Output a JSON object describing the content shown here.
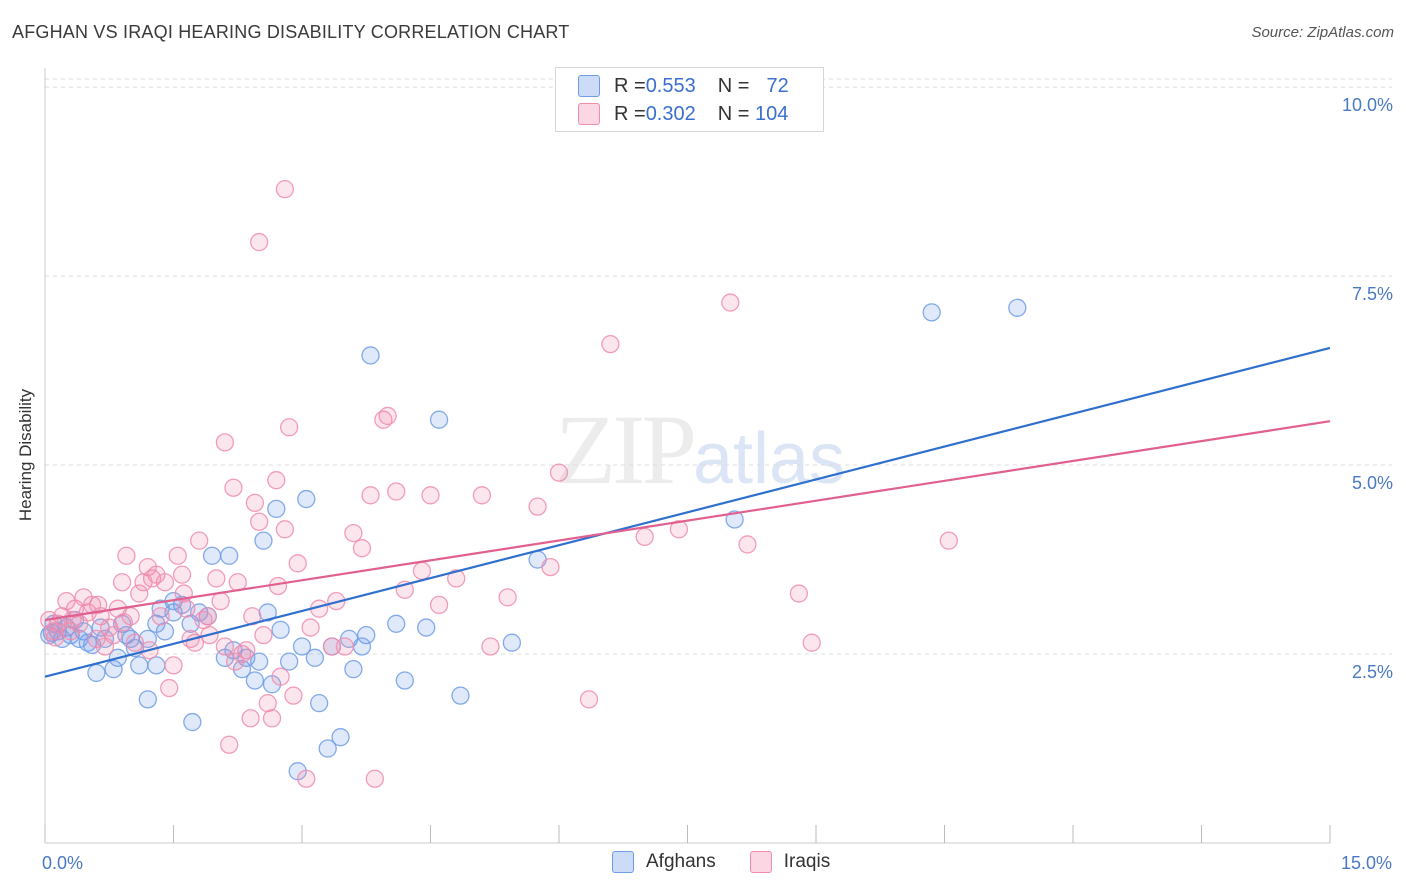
{
  "header": {
    "title": "AFGHAN VS IRAQI HEARING DISABILITY CORRELATION CHART",
    "source": "Source: ZipAtlas.com"
  },
  "watermark": {
    "zip": "ZIP",
    "atlas": "atlas"
  },
  "legend": {
    "rows": [
      {
        "r_label": "R = ",
        "r_value": "0.553",
        "n_label": "N = ",
        "n_value": " 72",
        "color": "#6f9ce6"
      },
      {
        "r_label": "R = ",
        "r_value": "0.302",
        "n_label": "N = ",
        "n_value": "104",
        "color": "#f08cae"
      }
    ]
  },
  "bottom_legend": [
    {
      "label": "Afghans",
      "color": "#6f9ce6"
    },
    {
      "label": "Iraqis",
      "color": "#f08cae"
    }
  ],
  "chart_data": {
    "type": "scatter",
    "title": "AFGHAN VS IRAQI HEARING DISABILITY CORRELATION CHART",
    "xlabel": "",
    "ylabel": "Hearing Disability",
    "xlim": [
      0,
      15
    ],
    "ylim": [
      0,
      10.2
    ],
    "x_tick_labels": [
      {
        "value": 0,
        "label": "0.0%"
      },
      {
        "value": 15,
        "label": "15.0%"
      }
    ],
    "y_tick_labels": [
      {
        "value": 2.5,
        "label": "2.5%"
      },
      {
        "value": 5.0,
        "label": "5.0%"
      },
      {
        "value": 7.5,
        "label": "7.5%"
      },
      {
        "value": 10.0,
        "label": "10.0%"
      }
    ],
    "series": [
      {
        "name": "Afghans",
        "color": "#6f9ce6",
        "line_color": "#2f6fce",
        "trend": {
          "x": [
            0,
            15
          ],
          "y": [
            2.2,
            6.55
          ]
        },
        "points": [
          [
            0.05,
            2.75
          ],
          [
            0.1,
            2.9
          ],
          [
            0.15,
            2.8
          ],
          [
            0.2,
            2.7
          ],
          [
            0.25,
            2.85
          ],
          [
            0.3,
            2.75
          ],
          [
            0.35,
            2.95
          ],
          [
            0.4,
            2.7
          ],
          [
            0.45,
            2.8
          ],
          [
            0.5,
            2.65
          ],
          [
            0.6,
            2.25
          ],
          [
            0.65,
            2.85
          ],
          [
            0.7,
            2.7
          ],
          [
            0.8,
            2.3
          ],
          [
            0.85,
            2.45
          ],
          [
            0.9,
            2.9
          ],
          [
            0.95,
            2.75
          ],
          [
            1.0,
            2.7
          ],
          [
            1.1,
            2.35
          ],
          [
            1.2,
            2.7
          ],
          [
            1.2,
            1.9
          ],
          [
            1.3,
            2.35
          ],
          [
            1.3,
            2.9
          ],
          [
            1.35,
            3.1
          ],
          [
            1.4,
            2.8
          ],
          [
            1.5,
            3.05
          ],
          [
            1.5,
            3.2
          ],
          [
            1.6,
            3.15
          ],
          [
            1.7,
            2.9
          ],
          [
            1.72,
            1.6
          ],
          [
            1.8,
            3.05
          ],
          [
            1.9,
            3.0
          ],
          [
            1.95,
            3.8
          ],
          [
            2.1,
            2.45
          ],
          [
            2.15,
            3.8
          ],
          [
            2.2,
            2.55
          ],
          [
            2.3,
            2.3
          ],
          [
            2.35,
            2.45
          ],
          [
            2.45,
            2.15
          ],
          [
            2.5,
            2.4
          ],
          [
            2.55,
            4.0
          ],
          [
            2.6,
            3.05
          ],
          [
            2.65,
            2.1
          ],
          [
            2.7,
            4.42
          ],
          [
            2.75,
            2.82
          ],
          [
            2.85,
            2.4
          ],
          [
            2.95,
            0.95
          ],
          [
            3.0,
            2.6
          ],
          [
            3.05,
            4.55
          ],
          [
            3.15,
            2.45
          ],
          [
            3.2,
            1.85
          ],
          [
            3.3,
            1.25
          ],
          [
            3.35,
            2.6
          ],
          [
            3.45,
            1.4
          ],
          [
            3.55,
            2.7
          ],
          [
            3.6,
            2.3
          ],
          [
            3.7,
            2.6
          ],
          [
            3.75,
            2.75
          ],
          [
            3.8,
            6.45
          ],
          [
            4.1,
            2.9
          ],
          [
            4.2,
            2.15
          ],
          [
            4.45,
            2.85
          ],
          [
            4.6,
            5.6
          ],
          [
            4.85,
            1.95
          ],
          [
            5.45,
            2.65
          ],
          [
            5.75,
            3.75
          ],
          [
            8.05,
            4.28
          ],
          [
            10.35,
            7.02
          ],
          [
            11.35,
            7.08
          ],
          [
            0.08,
            2.78
          ],
          [
            0.55,
            2.62
          ],
          [
            1.05,
            2.58
          ]
        ]
      },
      {
        "name": "Iraqis",
        "color": "#f08cae",
        "line_color": "#e0608f",
        "trend": {
          "x": [
            0,
            15
          ],
          "y": [
            2.95,
            5.58
          ]
        },
        "points": [
          [
            0.05,
            2.95
          ],
          [
            0.1,
            2.8
          ],
          [
            0.15,
            2.9
          ],
          [
            0.2,
            3.0
          ],
          [
            0.25,
            3.2
          ],
          [
            0.3,
            2.8
          ],
          [
            0.35,
            3.1
          ],
          [
            0.4,
            2.9
          ],
          [
            0.45,
            3.25
          ],
          [
            0.5,
            3.05
          ],
          [
            0.55,
            3.15
          ],
          [
            0.6,
            2.7
          ],
          [
            0.65,
            3.0
          ],
          [
            0.7,
            2.6
          ],
          [
            0.75,
            2.85
          ],
          [
            0.8,
            2.75
          ],
          [
            0.85,
            3.1
          ],
          [
            0.9,
            3.45
          ],
          [
            0.95,
            3.8
          ],
          [
            1.0,
            3.0
          ],
          [
            1.05,
            2.65
          ],
          [
            1.1,
            3.3
          ],
          [
            1.15,
            3.45
          ],
          [
            1.2,
            3.65
          ],
          [
            1.25,
            3.5
          ],
          [
            1.3,
            3.55
          ],
          [
            1.35,
            3.0
          ],
          [
            1.4,
            3.45
          ],
          [
            1.45,
            2.05
          ],
          [
            1.5,
            2.35
          ],
          [
            1.55,
            3.8
          ],
          [
            1.6,
            3.55
          ],
          [
            1.65,
            3.1
          ],
          [
            1.7,
            2.7
          ],
          [
            1.75,
            2.65
          ],
          [
            1.8,
            4.0
          ],
          [
            1.85,
            2.95
          ],
          [
            1.9,
            3.0
          ],
          [
            2.0,
            3.5
          ],
          [
            2.05,
            3.2
          ],
          [
            2.1,
            2.6
          ],
          [
            2.15,
            1.3
          ],
          [
            2.2,
            4.7
          ],
          [
            2.25,
            3.45
          ],
          [
            2.3,
            2.5
          ],
          [
            2.35,
            2.55
          ],
          [
            2.4,
            1.65
          ],
          [
            2.45,
            4.5
          ],
          [
            2.5,
            4.25
          ],
          [
            2.55,
            2.75
          ],
          [
            2.6,
            1.85
          ],
          [
            2.65,
            1.65
          ],
          [
            2.7,
            4.8
          ],
          [
            2.75,
            2.2
          ],
          [
            2.8,
            4.15
          ],
          [
            2.85,
            5.5
          ],
          [
            2.9,
            1.95
          ],
          [
            2.95,
            3.7
          ],
          [
            3.05,
            0.85
          ],
          [
            3.1,
            2.85
          ],
          [
            3.2,
            3.1
          ],
          [
            3.35,
            2.6
          ],
          [
            3.4,
            3.2
          ],
          [
            3.5,
            2.6
          ],
          [
            3.6,
            4.1
          ],
          [
            3.7,
            3.9
          ],
          [
            3.8,
            4.6
          ],
          [
            3.85,
            0.85
          ],
          [
            3.95,
            5.6
          ],
          [
            4.0,
            5.65
          ],
          [
            4.1,
            4.65
          ],
          [
            4.2,
            3.35
          ],
          [
            4.4,
            3.6
          ],
          [
            4.5,
            4.6
          ],
          [
            4.6,
            3.15
          ],
          [
            4.8,
            3.5
          ],
          [
            5.1,
            4.6
          ],
          [
            5.2,
            2.6
          ],
          [
            5.4,
            3.25
          ],
          [
            5.75,
            4.45
          ],
          [
            5.9,
            3.65
          ],
          [
            6.0,
            4.9
          ],
          [
            6.35,
            1.9
          ],
          [
            6.6,
            6.6
          ],
          [
            7.0,
            4.05
          ],
          [
            7.4,
            4.15
          ],
          [
            8.0,
            7.15
          ],
          [
            8.2,
            3.95
          ],
          [
            8.8,
            3.3
          ],
          [
            8.95,
            2.65
          ],
          [
            10.55,
            4.0
          ],
          [
            2.1,
            5.3
          ],
          [
            2.5,
            7.95
          ],
          [
            2.8,
            8.65
          ],
          [
            0.12,
            2.72
          ],
          [
            0.32,
            2.95
          ],
          [
            0.62,
            3.15
          ],
          [
            0.92,
            2.92
          ],
          [
            1.22,
            2.55
          ],
          [
            1.62,
            3.3
          ],
          [
            1.92,
            2.75
          ],
          [
            2.22,
            2.4
          ],
          [
            2.42,
            3.0
          ],
          [
            2.72,
            3.4
          ]
        ]
      }
    ]
  }
}
